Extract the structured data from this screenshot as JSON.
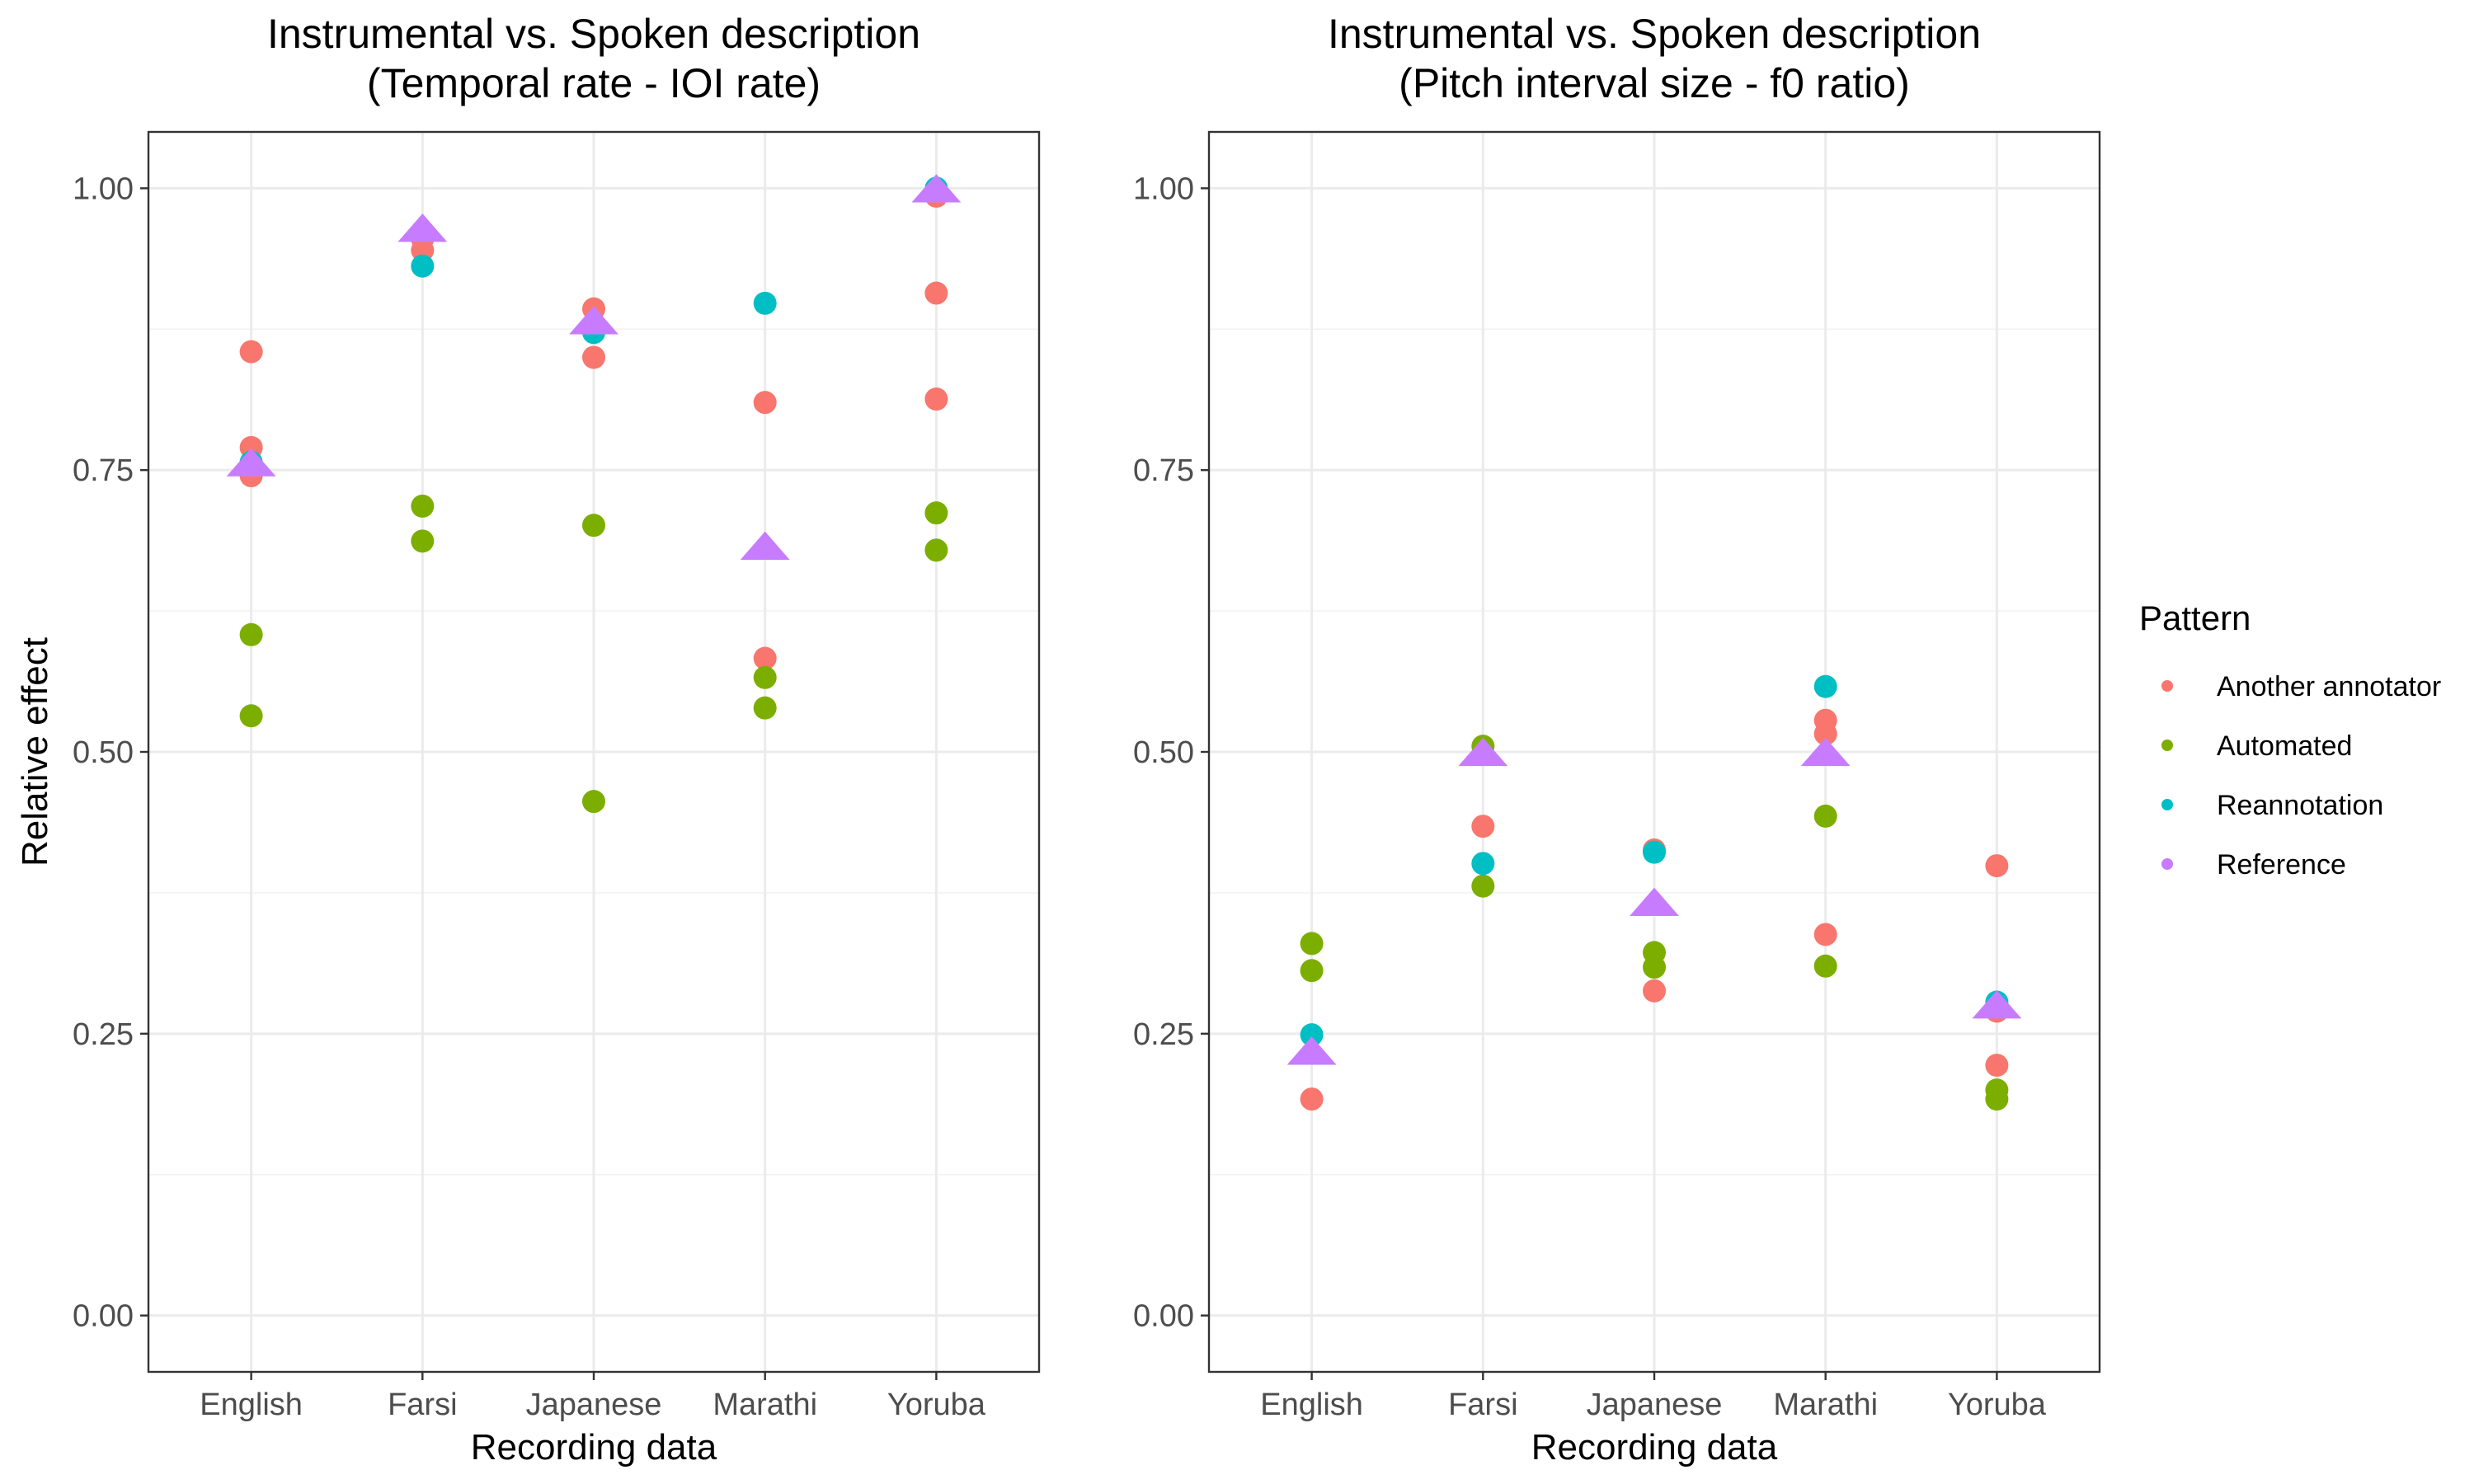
{
  "chart_data": [
    {
      "type": "scatter",
      "title": "Instrumental vs. Spoken description\n(Temporal rate - IOI rate)",
      "xlabel": "Recording data",
      "ylabel": "Relative effect",
      "categories": [
        "English",
        "Farsi",
        "Japanese",
        "Marathi",
        "Yoruba"
      ],
      "ylim": [
        -0.05,
        1.05
      ],
      "yticks": [
        "0.00",
        "0.25",
        "0.50",
        "0.75",
        "1.00"
      ],
      "grid": true,
      "series": [
        {
          "name": "Another annotator",
          "marker": "circle",
          "color": "#F8766D",
          "points": [
            [
              "English",
              0.855
            ],
            [
              "English",
              0.77
            ],
            [
              "English",
              0.745
            ],
            [
              "Farsi",
              0.955
            ],
            [
              "Farsi",
              0.945
            ],
            [
              "Japanese",
              0.893
            ],
            [
              "Japanese",
              0.85
            ],
            [
              "Marathi",
              0.81
            ],
            [
              "Marathi",
              0.583
            ],
            [
              "Yoruba",
              0.993
            ],
            [
              "Yoruba",
              0.907
            ],
            [
              "Yoruba",
              0.813
            ]
          ]
        },
        {
          "name": "Automated",
          "marker": "circle",
          "color": "#7CAE00",
          "points": [
            [
              "English",
              0.604
            ],
            [
              "English",
              0.532
            ],
            [
              "Farsi",
              0.718
            ],
            [
              "Farsi",
              0.687
            ],
            [
              "Japanese",
              0.701
            ],
            [
              "Japanese",
              0.456
            ],
            [
              "Marathi",
              0.566
            ],
            [
              "Marathi",
              0.539
            ],
            [
              "Yoruba",
              0.712
            ],
            [
              "Yoruba",
              0.679
            ]
          ]
        },
        {
          "name": "Reannotation",
          "marker": "circle",
          "color": "#00BFC4",
          "points": [
            [
              "English",
              0.757
            ],
            [
              "Farsi",
              0.931
            ],
            [
              "Japanese",
              0.872
            ],
            [
              "Marathi",
              0.898
            ],
            [
              "Yoruba",
              1.0
            ]
          ]
        },
        {
          "name": "Reference",
          "marker": "triangle",
          "color": "#C77CFF",
          "points": [
            [
              "English",
              0.757
            ],
            [
              "Farsi",
              0.965
            ],
            [
              "Japanese",
              0.883
            ],
            [
              "Marathi",
              0.683
            ],
            [
              "Yoruba",
              1.0
            ]
          ]
        }
      ]
    },
    {
      "type": "scatter",
      "title": "Instrumental vs. Spoken description\n(Pitch interval size - f0 ratio)",
      "xlabel": "Recording data",
      "ylabel": "",
      "categories": [
        "English",
        "Farsi",
        "Japanese",
        "Marathi",
        "Yoruba"
      ],
      "ylim": [
        -0.05,
        1.05
      ],
      "yticks": [
        "0.00",
        "0.25",
        "0.50",
        "0.75",
        "1.00"
      ],
      "grid": true,
      "series": [
        {
          "name": "Another annotator",
          "marker": "circle",
          "color": "#F8766D",
          "points": [
            [
              "English",
              0.192
            ],
            [
              "Farsi",
              0.434
            ],
            [
              "Japanese",
              0.413
            ],
            [
              "Japanese",
              0.288
            ],
            [
              "Marathi",
              0.528
            ],
            [
              "Marathi",
              0.516
            ],
            [
              "Marathi",
              0.338
            ],
            [
              "Yoruba",
              0.399
            ],
            [
              "Yoruba",
              0.27
            ],
            [
              "Yoruba",
              0.222
            ]
          ]
        },
        {
          "name": "Automated",
          "marker": "circle",
          "color": "#7CAE00",
          "points": [
            [
              "English",
              0.33
            ],
            [
              "English",
              0.306
            ],
            [
              "Farsi",
              0.505
            ],
            [
              "Farsi",
              0.381
            ],
            [
              "Japanese",
              0.322
            ],
            [
              "Japanese",
              0.309
            ],
            [
              "Marathi",
              0.443
            ],
            [
              "Marathi",
              0.31
            ],
            [
              "Yoruba",
              0.2
            ],
            [
              "Yoruba",
              0.192
            ]
          ]
        },
        {
          "name": "Reannotation",
          "marker": "circle",
          "color": "#00BFC4",
          "points": [
            [
              "English",
              0.249
            ],
            [
              "Farsi",
              0.401
            ],
            [
              "Japanese",
              0.411
            ],
            [
              "Marathi",
              0.558
            ],
            [
              "Yoruba",
              0.278
            ]
          ]
        },
        {
          "name": "Reference",
          "marker": "triangle",
          "color": "#C77CFF",
          "points": [
            [
              "English",
              0.235
            ],
            [
              "Farsi",
              0.5
            ],
            [
              "Japanese",
              0.367
            ],
            [
              "Marathi",
              0.5
            ],
            [
              "Yoruba",
              0.276
            ]
          ]
        }
      ]
    }
  ],
  "legend": {
    "title": "Pattern",
    "position": "right",
    "items": [
      {
        "label": "Another annotator",
        "color": "#F8766D"
      },
      {
        "label": "Automated",
        "color": "#7CAE00"
      },
      {
        "label": "Reannotation",
        "color": "#00BFC4"
      },
      {
        "label": "Reference",
        "color": "#C77CFF"
      }
    ]
  }
}
